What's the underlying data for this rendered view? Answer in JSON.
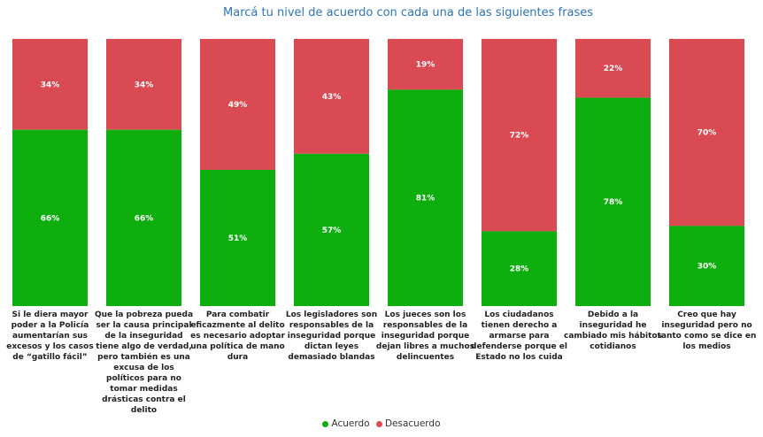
{
  "chart_data": {
    "type": "bar",
    "stacked": true,
    "title": "Marcá tu nivel de acuerdo con cada una de las siguientes frases",
    "categories": [
      "Si le diera mayor poder a la Policía aumentarían sus excesos y los casos de “gatillo fácil”",
      "Que la pobreza pueda ser la causa principal de la inseguridad tiene algo de verdad, pero también es una excusa de los políticos para no tomar medidas drásticas contra el delito",
      "Para combatir eficazmente al delito es necesario adoptar una política de mano dura",
      "Los legisladores son responsables de la inseguridad porque dictan leyes demasiado blandas",
      "Los jueces son los responsables de la inseguridad porque dejan libres a muchos delincuentes",
      "Los ciudadanos tienen derecho a armarse para defenderse porque el Estado no los cuida",
      "Debido a la inseguridad he cambiado mis hábitos cotidianos",
      "Creo que hay inseguridad pero no tanto como se dice en los medios"
    ],
    "series": [
      {
        "name": "Acuerdo",
        "color": "#0eae0e",
        "values": [
          66,
          66,
          51,
          57,
          81,
          28,
          78,
          30
        ]
      },
      {
        "name": "Desacuerdo",
        "color": "#d94a52",
        "values": [
          34,
          34,
          49,
          43,
          19,
          72,
          22,
          70
        ]
      }
    ],
    "ylim": [
      0,
      100
    ],
    "legend_position": "bottom",
    "grid": false
  }
}
